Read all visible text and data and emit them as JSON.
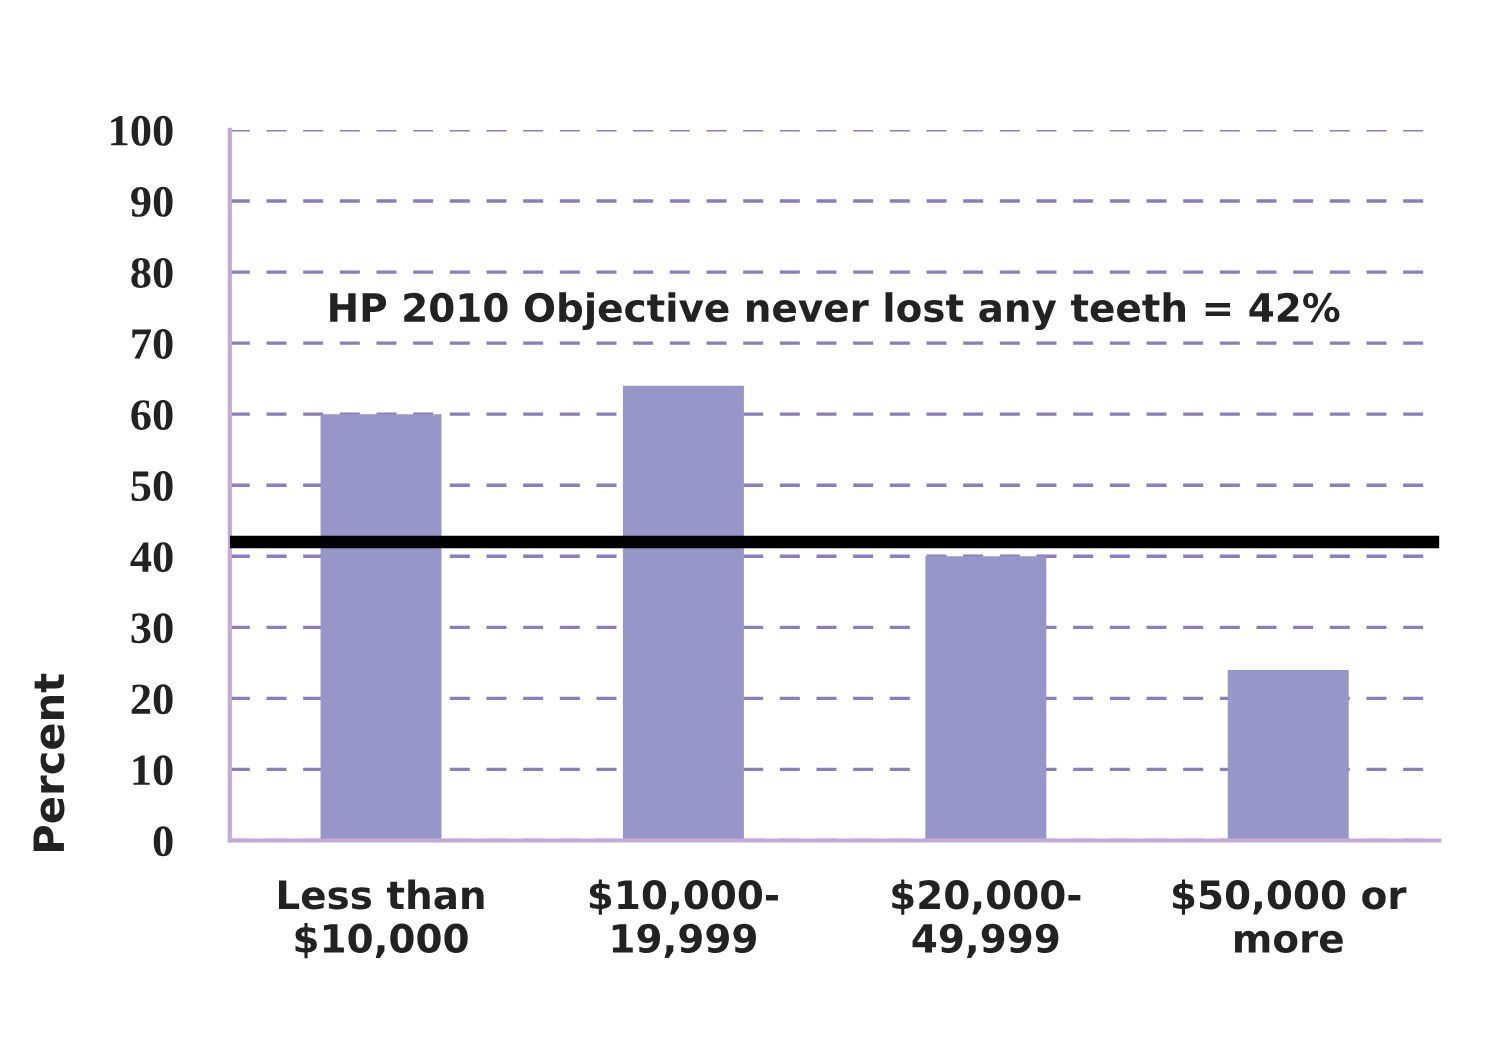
{
  "chart_data": {
    "type": "bar",
    "categories": [
      "Less than\n$10,000",
      "$10,000-\n19,999",
      "$20,000-\n49,999",
      "$50,000 or\nmore"
    ],
    "values": [
      60,
      64,
      40,
      24
    ],
    "color": "#9696c8",
    "ylabel": "Percent",
    "ylim": [
      0,
      100
    ],
    "yticks": [
      0,
      10,
      20,
      30,
      40,
      50,
      60,
      70,
      80,
      90,
      100
    ],
    "grid": "y",
    "ref_lines": [
      {
        "axis": "y",
        "value": 42,
        "label": "HP 2010 Objective never lost any teeth = 42%",
        "color": "#000000"
      }
    ]
  }
}
